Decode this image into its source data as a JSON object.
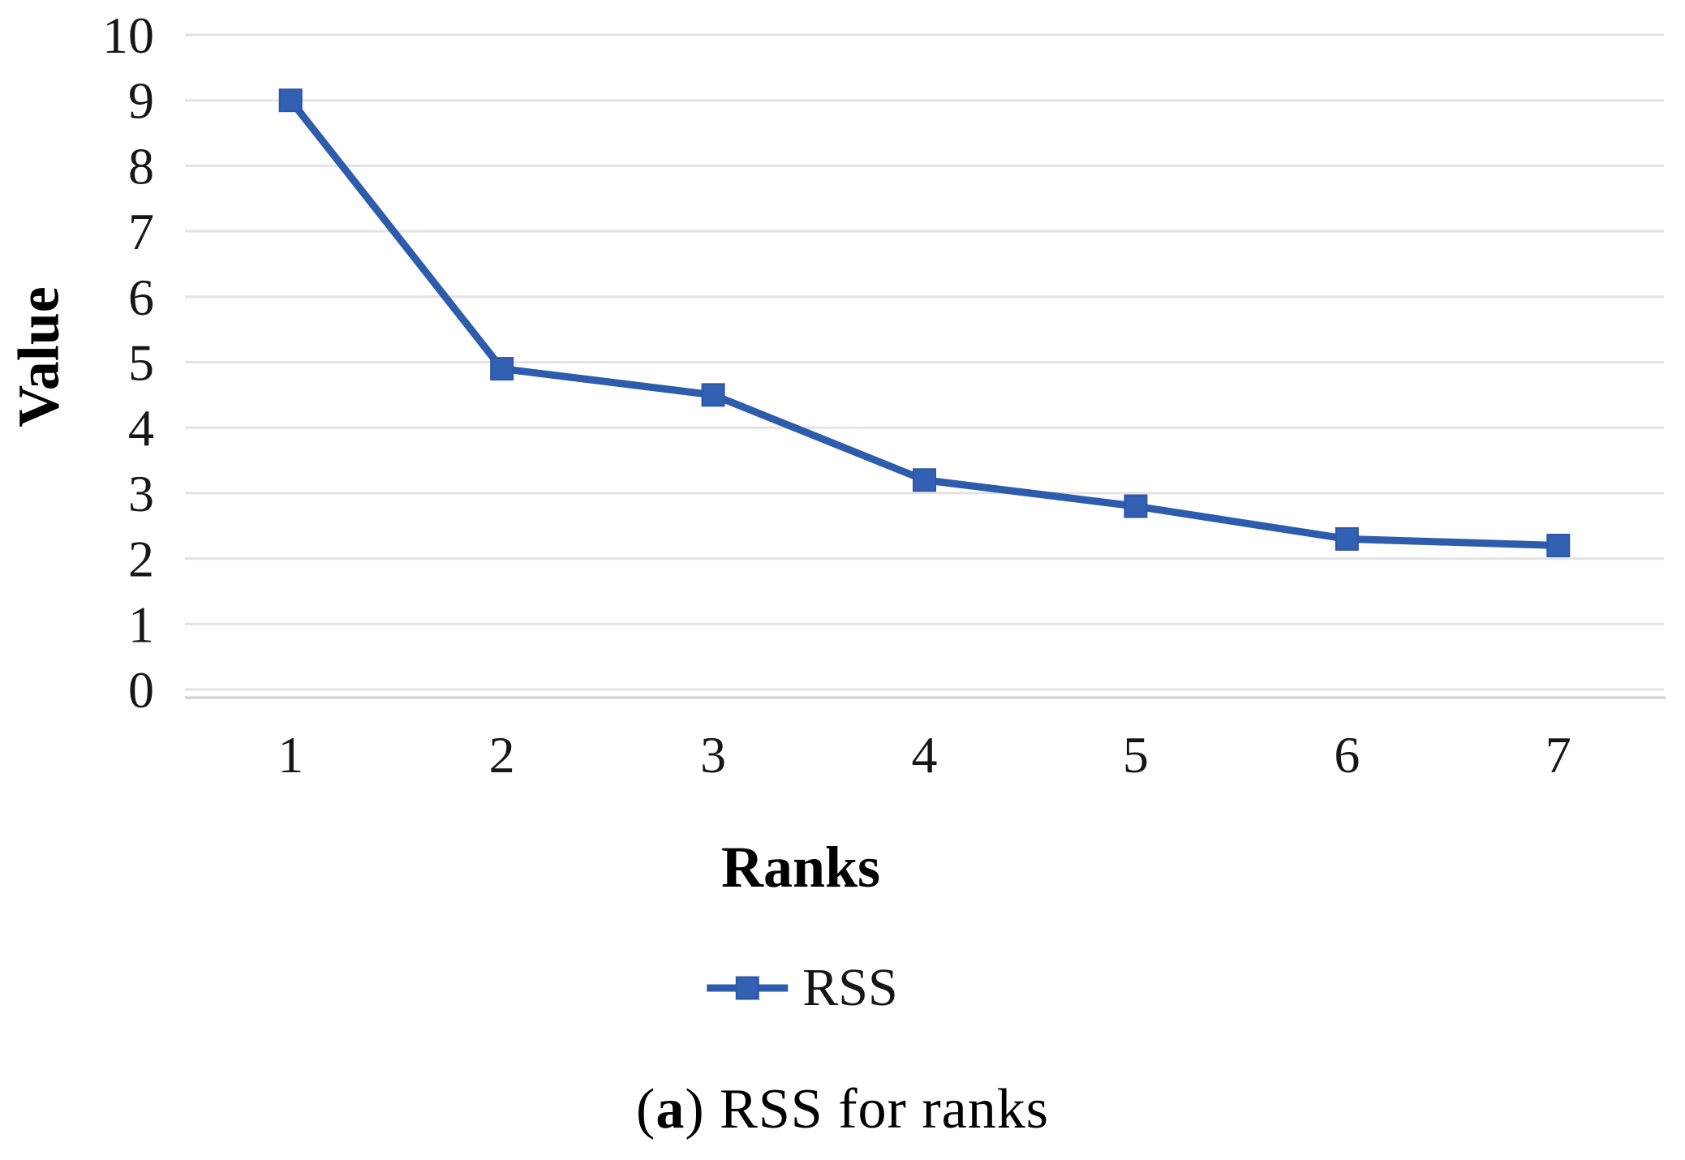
{
  "chart_data": {
    "type": "line",
    "title": "",
    "xlabel": "Ranks",
    "ylabel": "Value",
    "categories": [
      "1",
      "2",
      "3",
      "4",
      "5",
      "6",
      "7"
    ],
    "series": [
      {
        "name": "RSS",
        "values": [
          9.0,
          4.9,
          4.5,
          3.2,
          2.8,
          2.3,
          2.2
        ]
      }
    ],
    "ylim": [
      0,
      10
    ],
    "y_ticks": [
      0,
      1,
      2,
      3,
      4,
      5,
      6,
      7,
      8,
      9,
      10
    ],
    "grid": "horizontal",
    "legend_position": "bottom",
    "marker": "square",
    "colors": {
      "line": "#2E5CAD",
      "marker_fill": "#3260B2",
      "marker_stroke": "#2C57A5",
      "gridline": "#E3E3E3",
      "axis_line": "#CFCFCF",
      "text": "#161616"
    }
  },
  "caption": {
    "open": "(",
    "letter": "a",
    "rest": ") RSS for ranks"
  }
}
